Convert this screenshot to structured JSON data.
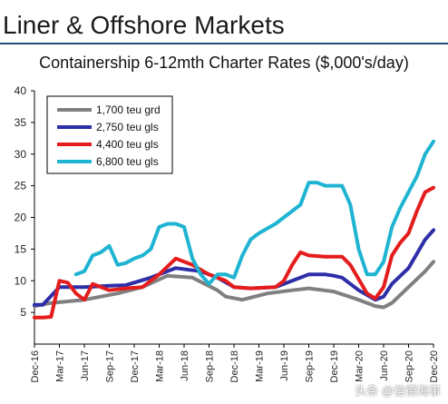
{
  "header": {
    "title": "Liner & Offshore Markets"
  },
  "watermark": "头条 @信德海事",
  "chart_data": {
    "type": "line",
    "title": "Containership 6-12mth Charter Rates ($,000's/day)",
    "ylim": [
      0,
      40
    ],
    "yticks": [
      5,
      10,
      15,
      20,
      25,
      30,
      35,
      40
    ],
    "x_range": [
      "2016-12",
      "2020-12"
    ],
    "xticks": [
      "Dec-16",
      "Mar-17",
      "Jun-17",
      "Sep-17",
      "Dec-17",
      "Mar-18",
      "Jun-18",
      "Sep-18",
      "Dec-18",
      "Mar-19",
      "Jun-19",
      "Sep-19",
      "Dec-19",
      "Mar-20",
      "Jun-20",
      "Sep-20",
      "Dec-20"
    ],
    "legend_position": "top-left",
    "grid": false,
    "series": [
      {
        "name": "1,700 teu grd",
        "color": "#808080",
        "x": [
          "2016-12",
          "2017-02",
          "2017-06",
          "2017-10",
          "2018-01",
          "2018-04",
          "2018-07",
          "2018-10",
          "2018-11",
          "2019-01",
          "2019-04",
          "2019-07",
          "2019-09",
          "2019-12",
          "2020-03",
          "2020-05",
          "2020-06",
          "2020-07",
          "2020-09",
          "2020-11",
          "2020-12"
        ],
        "y": [
          6,
          6.5,
          7,
          8,
          9,
          10.8,
          10.5,
          8.5,
          7.5,
          7,
          8,
          8.5,
          8.8,
          8.3,
          7,
          6,
          5.8,
          6.5,
          9,
          11.5,
          13
        ]
      },
      {
        "name": "2,750 teu gls",
        "color": "#2e2ea8",
        "x": [
          "2016-12",
          "2017-01",
          "2017-03",
          "2017-06",
          "2017-09",
          "2017-11",
          "2018-02",
          "2018-05",
          "2018-08",
          "2018-10",
          "2018-12",
          "2019-02",
          "2019-05",
          "2019-07",
          "2019-09",
          "2019-11",
          "2019-12",
          "2020-01",
          "2020-02",
          "2020-03",
          "2020-05",
          "2020-06",
          "2020-07",
          "2020-09",
          "2020-11",
          "2020-12"
        ],
        "y": [
          6.2,
          6.2,
          9,
          9,
          9.2,
          9.3,
          10.5,
          12,
          11.5,
          10.5,
          9,
          8.8,
          9,
          10,
          11,
          11,
          10.8,
          10.5,
          9.5,
          8.5,
          7,
          7.5,
          9.5,
          12,
          16.5,
          18
        ]
      },
      {
        "name": "4,400 teu gls",
        "color": "#e51c1c",
        "x": [
          "2016-12",
          "2017-01",
          "2017-02",
          "2017-03",
          "2017-04",
          "2017-05",
          "2017-06",
          "2017-07",
          "2017-09",
          "2017-11",
          "2018-01",
          "2018-03",
          "2018-05",
          "2018-07",
          "2018-09",
          "2018-11",
          "2018-12",
          "2019-02",
          "2019-05",
          "2019-06",
          "2019-07",
          "2019-08",
          "2019-09",
          "2019-11",
          "2020-01",
          "2020-02",
          "2020-04",
          "2020-05",
          "2020-06",
          "2020-07",
          "2020-08",
          "2020-09",
          "2020-10",
          "2020-11",
          "2020-12"
        ],
        "y": [
          4.2,
          4.2,
          4.3,
          10,
          9.7,
          8,
          7,
          9.5,
          8.5,
          8.8,
          9,
          11,
          13.5,
          12.5,
          11,
          10,
          9,
          8.8,
          9,
          10,
          12.5,
          14.5,
          14,
          13.8,
          13.8,
          12.5,
          8,
          7.2,
          9,
          14,
          16,
          17.5,
          21,
          24,
          24.7
        ]
      },
      {
        "name": "6,800 teu gls",
        "color": "#1fb4d2",
        "x": [
          "2017-05",
          "2017-06",
          "2017-07",
          "2017-08",
          "2017-09",
          "2017-10",
          "2017-11",
          "2017-12",
          "2018-01",
          "2018-02",
          "2018-03",
          "2018-04",
          "2018-05",
          "2018-06",
          "2018-07",
          "2018-08",
          "2018-09",
          "2018-10",
          "2018-11",
          "2018-12",
          "2019-01",
          "2019-02",
          "2019-03",
          "2019-05",
          "2019-06",
          "2019-08",
          "2019-09",
          "2019-10",
          "2019-11",
          "2019-12",
          "2020-01",
          "2020-02",
          "2020-03",
          "2020-04",
          "2020-05",
          "2020-06",
          "2020-07",
          "2020-08",
          "2020-09",
          "2020-10",
          "2020-11",
          "2020-12"
        ],
        "y": [
          11,
          11.5,
          14,
          14.5,
          15.5,
          12.5,
          12.8,
          13.5,
          14,
          15,
          18.5,
          19,
          19,
          18.5,
          13.5,
          11,
          9.5,
          11,
          11,
          10.5,
          14,
          16.5,
          17.5,
          19,
          20,
          22,
          25.5,
          25.5,
          25,
          25,
          25,
          22,
          15,
          11,
          11,
          13,
          18.5,
          21.5,
          24,
          26.5,
          30,
          32
        ]
      }
    ]
  }
}
